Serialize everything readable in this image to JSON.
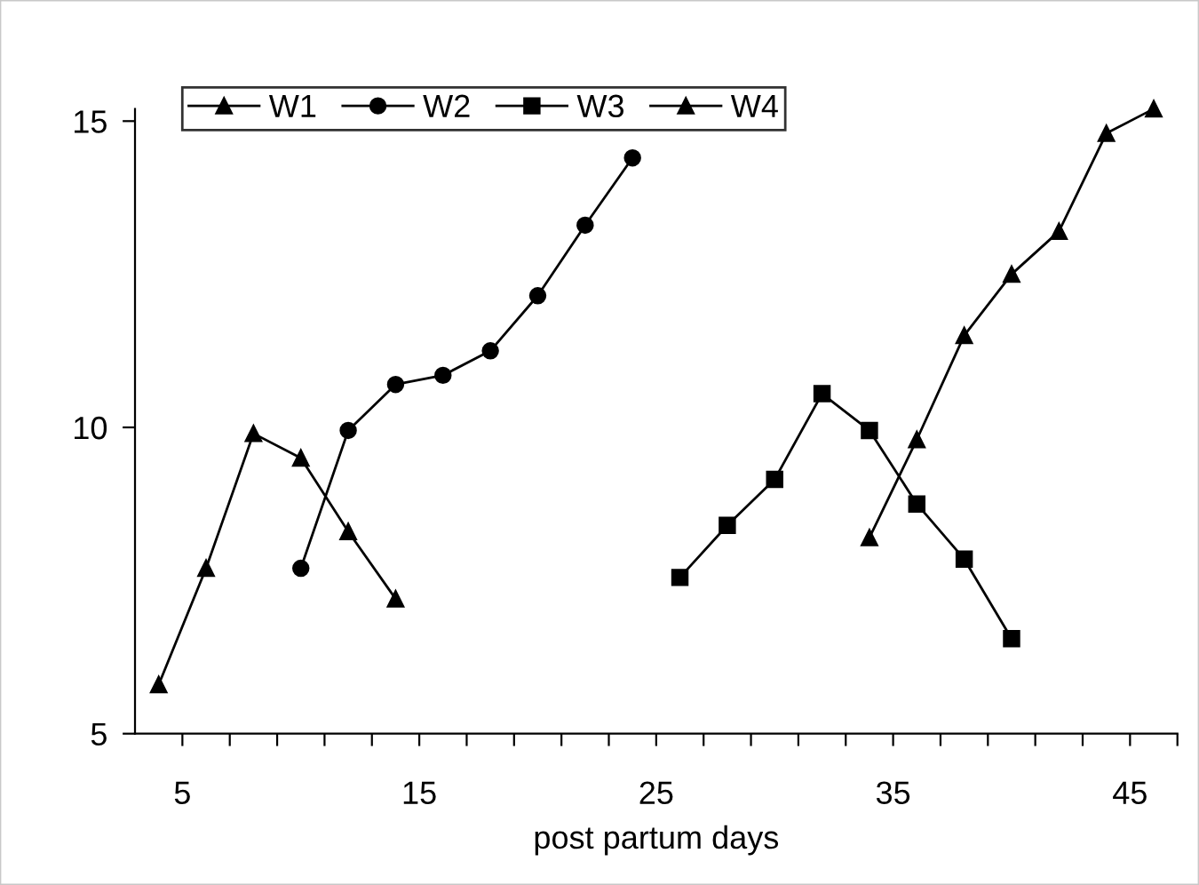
{
  "chart_data": {
    "type": "line",
    "xlabel": "post partum days",
    "xlim": [
      3,
      47
    ],
    "ylim": [
      5,
      15.2
    ],
    "xticks": [
      {
        "value": 5,
        "label": "5"
      },
      {
        "value": 7,
        "label": null
      },
      {
        "value": 9,
        "label": null
      },
      {
        "value": 11,
        "label": null
      },
      {
        "value": 13,
        "label": null
      },
      {
        "value": 15,
        "label": "15"
      },
      {
        "value": 17,
        "label": null
      },
      {
        "value": 19,
        "label": null
      },
      {
        "value": 21,
        "label": null
      },
      {
        "value": 23,
        "label": null
      },
      {
        "value": 25,
        "label": "25"
      },
      {
        "value": 27,
        "label": null
      },
      {
        "value": 29,
        "label": null
      },
      {
        "value": 31,
        "label": null
      },
      {
        "value": 33,
        "label": null
      },
      {
        "value": 35,
        "label": "35"
      },
      {
        "value": 37,
        "label": null
      },
      {
        "value": 39,
        "label": null
      },
      {
        "value": 41,
        "label": null
      },
      {
        "value": 43,
        "label": null
      },
      {
        "value": 45,
        "label": "45"
      },
      {
        "value": 47,
        "label": null
      }
    ],
    "yticks": [
      5,
      10,
      15
    ],
    "grid": false,
    "legend": "top left",
    "line_style": "solid",
    "series": [
      {
        "name": "W1",
        "color": "#000000",
        "marker": "triangle",
        "x": [
          4,
          6,
          8,
          10,
          12,
          14
        ],
        "values": [
          5.8,
          7.7,
          9.9,
          9.5,
          8.3,
          7.2
        ]
      },
      {
        "name": "W2",
        "color": "#000000",
        "marker": "circle",
        "x": [
          10,
          12,
          14,
          16,
          18,
          20,
          22,
          24
        ],
        "values": [
          7.7,
          9.95,
          10.7,
          10.85,
          11.25,
          12.15,
          13.3,
          14.4
        ]
      },
      {
        "name": "W3",
        "color": "#000000",
        "marker": "square",
        "x": [
          26,
          28,
          30,
          32,
          34,
          36,
          38,
          40
        ],
        "values": [
          7.55,
          8.4,
          9.15,
          10.55,
          9.95,
          8.75,
          7.85,
          6.55
        ]
      },
      {
        "name": "W4",
        "color": "#000000",
        "marker": "triangle",
        "x": [
          34,
          36,
          38,
          40,
          42,
          44,
          46
        ],
        "values": [
          8.2,
          9.8,
          11.5,
          12.5,
          13.2,
          14.8,
          15.2
        ]
      }
    ]
  }
}
